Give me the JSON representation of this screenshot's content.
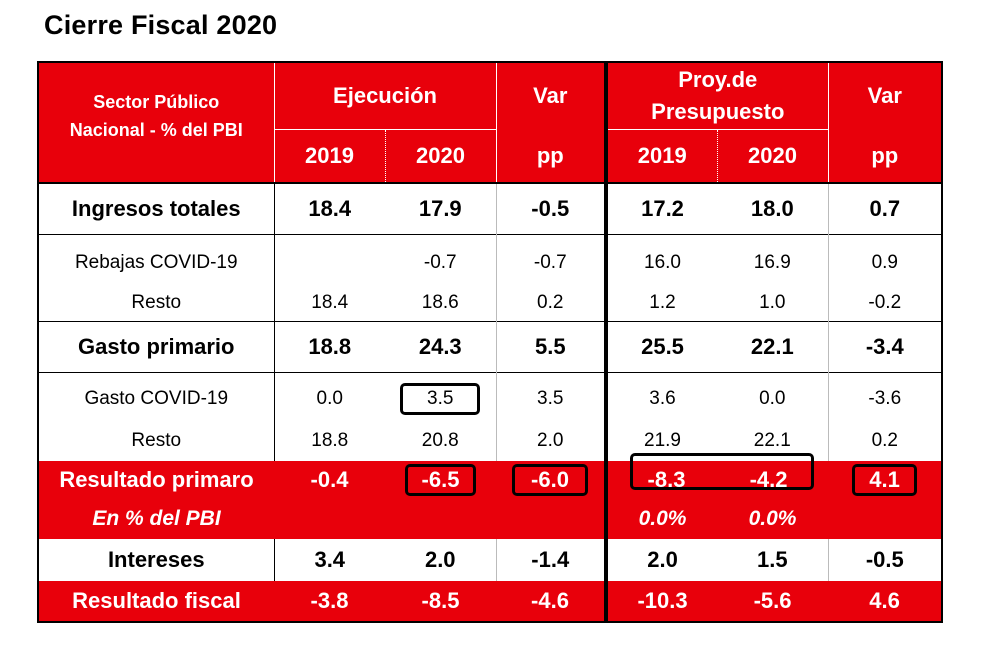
{
  "title": "Cierre Fiscal 2020",
  "header": {
    "sector_line1": "Sector Público",
    "sector_line2": "Nacional - % del PBI",
    "ejecucion": "Ejecución",
    "var1": "Var",
    "proy_line1": "Proy.de",
    "proy_line2": "Presupuesto",
    "var2": "Var",
    "sub": [
      "2019",
      "2020",
      "pp",
      "2019",
      "2020",
      "pp"
    ]
  },
  "rows": {
    "ingresos": {
      "label": "Ingresos totales",
      "values": [
        "18.4",
        "17.9",
        "-0.5",
        "17.2",
        "18.0",
        "0.7"
      ]
    },
    "rebajas": {
      "label": "Rebajas COVID-19",
      "values": [
        "",
        "-0.7",
        "-0.7",
        "16.0",
        "16.9",
        "0.9"
      ]
    },
    "resto1": {
      "label": "Resto",
      "values": [
        "18.4",
        "18.6",
        "0.2",
        "1.2",
        "1.0",
        "-0.2"
      ]
    },
    "gasto": {
      "label": "Gasto primario",
      "values": [
        "18.8",
        "24.3",
        "5.5",
        "25.5",
        "22.1",
        "-3.4"
      ]
    },
    "gasto_covid": {
      "label": "Gasto COVID-19",
      "values": [
        "0.0",
        "3.5",
        "3.5",
        "3.6",
        "0.0",
        "-3.6"
      ]
    },
    "resto2": {
      "label": "Resto",
      "values": [
        "18.8",
        "20.8",
        "2.0",
        "21.9",
        "22.1",
        "0.2"
      ]
    },
    "resultado_primario": {
      "label": "Resultado primaro",
      "values": [
        "-0.4",
        "-6.5",
        "-6.0",
        "-8.3",
        "-4.2",
        "4.1"
      ]
    },
    "en_pbi": {
      "label": "En % del PBI",
      "values": [
        "",
        "",
        "",
        "0.0%",
        "0.0%",
        ""
      ]
    },
    "intereses": {
      "label": "Intereses",
      "values": [
        "3.4",
        "2.0",
        "-1.4",
        "2.0",
        "1.5",
        "-0.5"
      ]
    },
    "resultado_fiscal": {
      "label": "Resultado fiscal",
      "values": [
        "-3.8",
        "-8.5",
        "-4.6",
        "-10.3",
        "-5.6",
        "4.6"
      ]
    }
  },
  "colors": {
    "header_red": "#e8000b",
    "text_white": "#ffffff",
    "text_black": "#000000"
  }
}
